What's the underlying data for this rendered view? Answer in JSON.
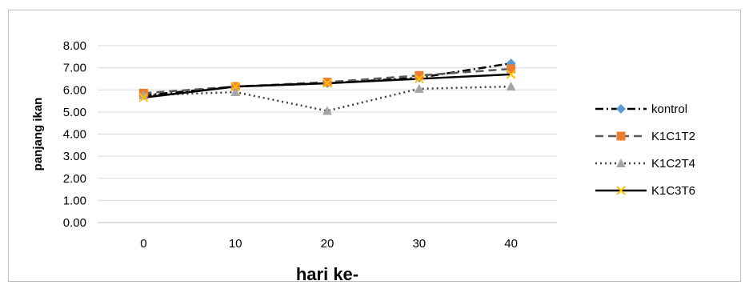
{
  "chart_data": {
    "type": "line",
    "title": "",
    "xlabel": "hari ke-",
    "ylabel": "panjang ikan",
    "categories": [
      "0",
      "10",
      "20",
      "30",
      "40"
    ],
    "ylim": [
      0,
      8
    ],
    "yticks": [
      "0.00",
      "1.00",
      "2.00",
      "3.00",
      "4.00",
      "5.00",
      "6.00",
      "7.00",
      "8.00"
    ],
    "grid": true,
    "legend_position": "right",
    "series": [
      {
        "name": "kontrol",
        "values": [
          5.75,
          6.15,
          6.3,
          6.55,
          7.2
        ],
        "color": "#5b9bd5",
        "line_color": "#000000",
        "dash": "dash-dot",
        "marker": "diamond"
      },
      {
        "name": "K1C1T2",
        "values": [
          5.85,
          6.15,
          6.35,
          6.65,
          6.95
        ],
        "color": "#ed7d31",
        "line_color": "#595959",
        "dash": "dashed",
        "marker": "square"
      },
      {
        "name": "K1C2T4",
        "values": [
          5.75,
          5.9,
          5.05,
          6.05,
          6.15
        ],
        "color": "#a5a5a5",
        "line_color": "#404040",
        "dash": "dotted",
        "marker": "triangle"
      },
      {
        "name": "K1C3T6",
        "values": [
          5.65,
          6.15,
          6.3,
          6.5,
          6.7
        ],
        "color": "#ffc000",
        "line_color": "#000000",
        "dash": "solid",
        "marker": "x"
      }
    ]
  }
}
